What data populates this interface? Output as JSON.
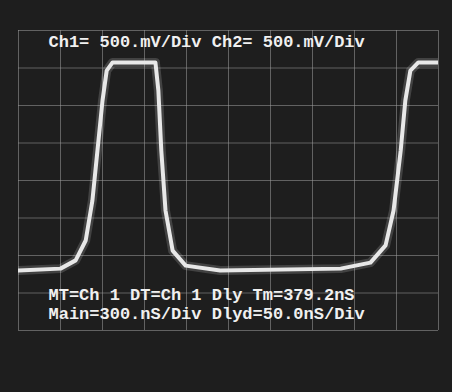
{
  "chart_data": {
    "type": "line",
    "title": "Ch1= 500.mV/Div Ch2= 500.mV/Div",
    "annotations": [
      "MT=Ch 1 DT=Ch 1 Dly Tm=379.2nS",
      "Main=300.nS/Div Dlyd=50.0nS/Div"
    ],
    "x": [
      0,
      1.0,
      1.36,
      1.6,
      1.76,
      1.88,
      2.0,
      2.1,
      2.24,
      3.26,
      3.33,
      3.4,
      3.5,
      3.67,
      3.98,
      4.8,
      7.67,
      8.38,
      8.74,
      8.93,
      9.1,
      9.21,
      9.33,
      9.52,
      10.0
    ],
    "values": [
      1.6,
      1.65,
      1.87,
      2.4,
      3.47,
      4.8,
      6.13,
      6.93,
      7.15,
      7.15,
      6.4,
      4.8,
      3.2,
      2.13,
      1.73,
      1.6,
      1.65,
      1.81,
      2.27,
      3.2,
      4.8,
      6.13,
      6.93,
      7.15,
      7.15
    ],
    "color": "#e8e8e8",
    "xlim": [
      0,
      10
    ],
    "xticks": [
      0,
      1,
      2,
      3,
      4,
      5,
      6,
      7,
      8,
      9,
      10
    ],
    "ylim": [
      0,
      8
    ],
    "yticks": [
      0,
      1,
      2,
      3,
      4,
      5,
      6,
      7,
      8
    ],
    "grid": true,
    "tick_labels": false
  }
}
